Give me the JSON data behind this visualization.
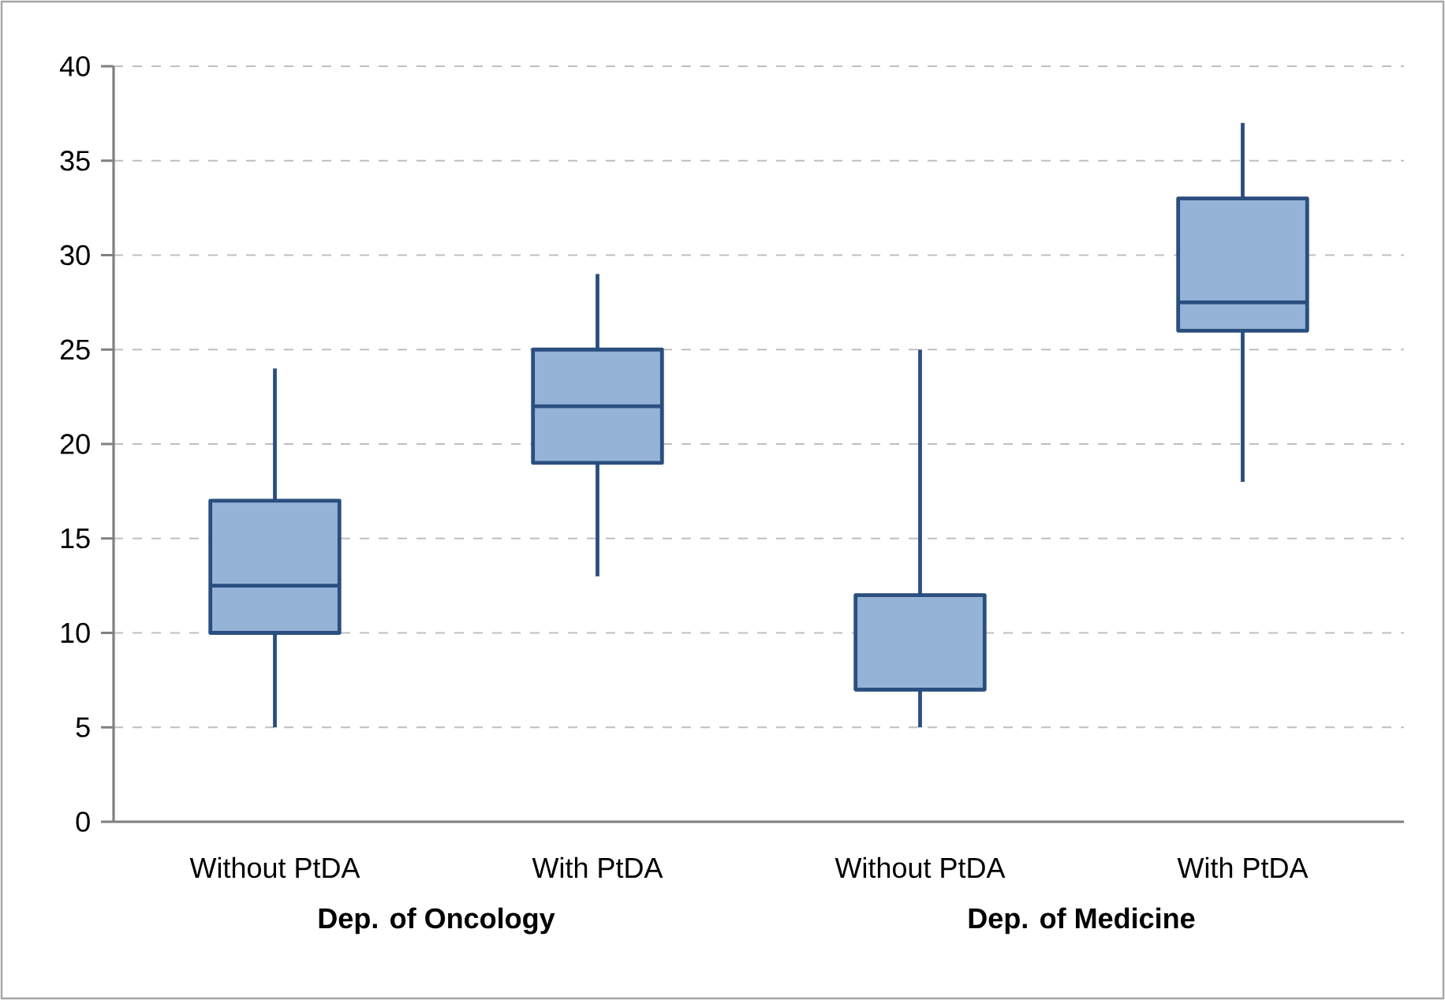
{
  "chart_data": {
    "type": "box",
    "categories": [
      "Without PtDA",
      "With PtDA",
      "Without PtDA",
      "With PtDA"
    ],
    "boxes": [
      {
        "low": 5,
        "q1": 10,
        "median": 12.5,
        "q3": 17,
        "high": 24
      },
      {
        "low": 13,
        "q1": 19,
        "median": 22,
        "q3": 25,
        "high": 29
      },
      {
        "low": 5,
        "q1": 7,
        "median": 7,
        "q3": 12,
        "high": 25
      },
      {
        "low": 18,
        "q1": 26,
        "median": 27.5,
        "q3": 33,
        "high": 37
      }
    ],
    "color": "#95b3d7",
    "ylim": [
      0,
      40
    ],
    "yticks": [
      0,
      5,
      10,
      15,
      20,
      25,
      30,
      35,
      40
    ],
    "grid": "y",
    "annotations": [
      "Dep. of Oncology",
      "Dep. of Medicine"
    ]
  }
}
